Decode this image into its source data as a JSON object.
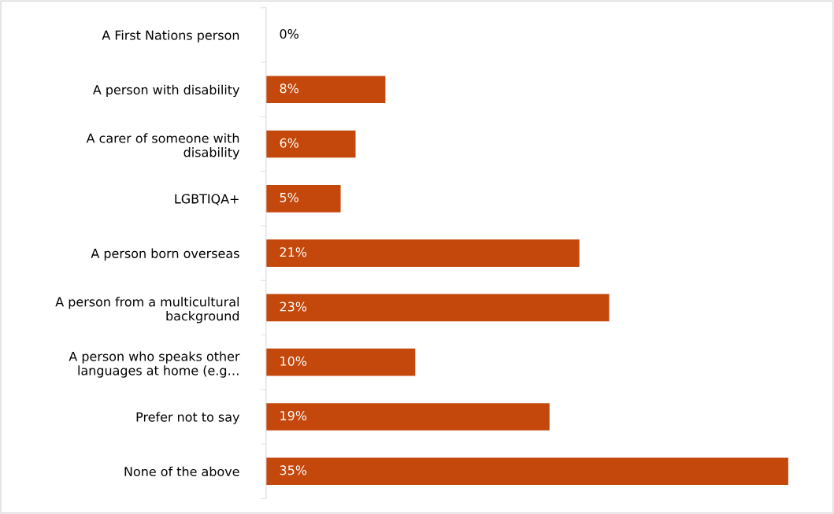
{
  "chart_data": {
    "type": "bar",
    "orientation": "horizontal",
    "categories": [
      "A First Nations person",
      "A person with disability",
      "A carer of someone with\ndisability",
      "LGBTIQA+",
      "A person born overseas",
      "A person from a multicultural\nbackground",
      "A person who speaks other\nlanguages at home (e.g…",
      "Prefer not to say",
      "None of the above"
    ],
    "values": [
      0,
      8,
      6,
      5,
      21,
      23,
      10,
      19,
      35
    ],
    "value_labels": [
      "0%",
      "8%",
      "6%",
      "5%",
      "21%",
      "23%",
      "10%",
      "19%",
      "35%"
    ],
    "color": "#c4480c",
    "grid": false,
    "legend": false
  }
}
